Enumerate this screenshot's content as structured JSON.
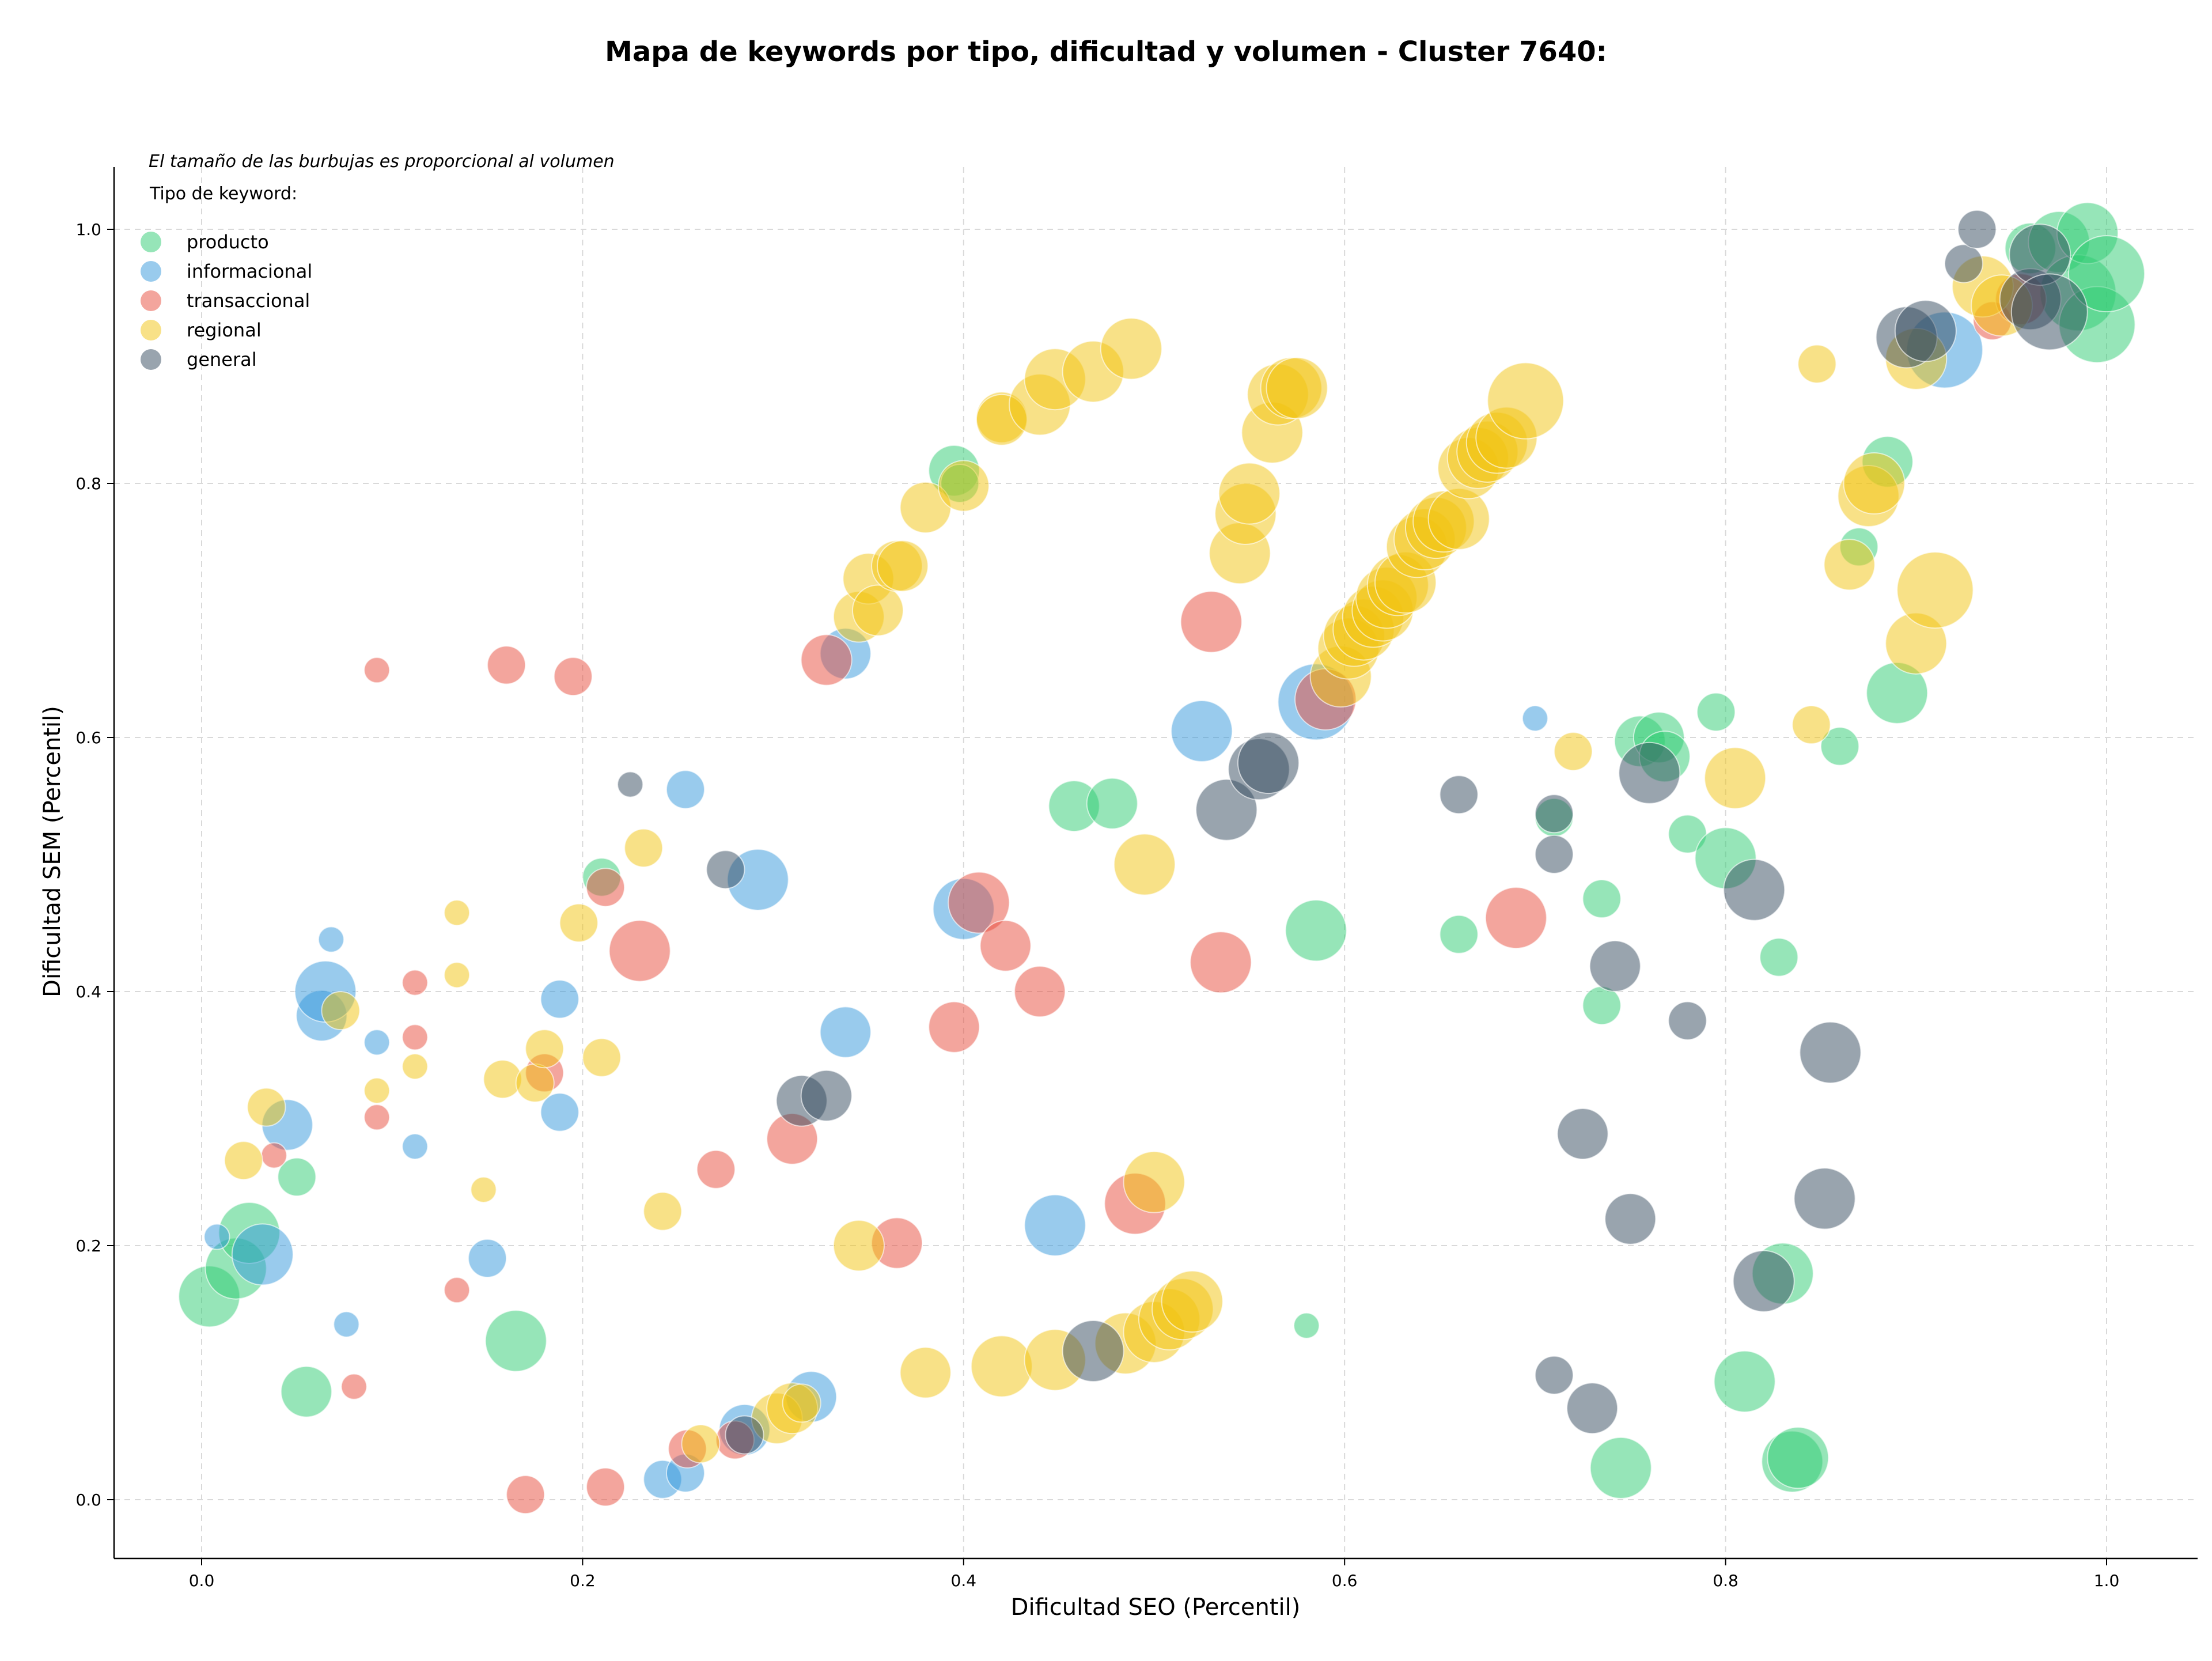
{
  "chart_data": {
    "type": "scatter",
    "title": "Mapa de keywords por tipo, dificultad y volumen - Cluster 7640:",
    "xlabel": "Dificultad SEO (Percentil)",
    "ylabel": "Dificultad SEM (Percentil)",
    "note": "El tamaño de las burbujas es proporcional al volumen",
    "legend_title": "Tipo de keyword:",
    "legend_position": "top-left",
    "grid": true,
    "xlim": [
      -0.045,
      1.05
    ],
    "ylim": [
      -0.045,
      1.05
    ],
    "xticks": [
      "0.0",
      "0.2",
      "0.4",
      "0.6",
      "0.8",
      "1.0"
    ],
    "yticks": [
      "0.0",
      "0.2",
      "0.4",
      "0.6",
      "0.8",
      "1.0"
    ],
    "series": [
      {
        "name": "producto",
        "color": "#2ecc71",
        "points": [
          [
            0.004,
            0.16,
            4
          ],
          [
            0.018,
            0.182,
            4
          ],
          [
            0.025,
            0.21,
            4
          ],
          [
            0.05,
            0.254,
            2
          ],
          [
            0.055,
            0.085,
            3
          ],
          [
            0.165,
            0.125,
            4
          ],
          [
            0.21,
            0.49,
            2
          ],
          [
            0.395,
            0.81,
            3
          ],
          [
            0.398,
            0.8,
            2
          ],
          [
            0.458,
            0.546,
            3
          ],
          [
            0.478,
            0.548,
            3
          ],
          [
            0.58,
            0.137,
            1
          ],
          [
            0.585,
            0.448,
            4
          ],
          [
            0.66,
            0.445,
            2
          ],
          [
            0.71,
            0.537,
            2
          ],
          [
            0.735,
            0.473,
            2
          ],
          [
            0.735,
            0.389,
            2
          ],
          [
            0.745,
            0.025,
            4
          ],
          [
            0.755,
            0.597,
            3
          ],
          [
            0.765,
            0.6,
            3
          ],
          [
            0.768,
            0.585,
            3
          ],
          [
            0.78,
            0.524,
            2
          ],
          [
            0.795,
            0.62,
            2
          ],
          [
            0.8,
            0.505,
            4
          ],
          [
            0.81,
            0.093,
            4
          ],
          [
            0.828,
            0.427,
            2
          ],
          [
            0.83,
            0.178,
            4
          ],
          [
            0.835,
            0.03,
            4
          ],
          [
            0.838,
            0.033,
            4
          ],
          [
            0.86,
            0.593,
            2
          ],
          [
            0.87,
            0.75,
            2
          ],
          [
            0.885,
            0.817,
            3
          ],
          [
            0.89,
            0.635,
            4
          ],
          [
            0.96,
            0.985,
            3
          ],
          [
            0.975,
            0.99,
            4
          ],
          [
            0.985,
            0.95,
            5
          ],
          [
            0.99,
            0.997,
            4
          ],
          [
            0.995,
            0.925,
            5
          ],
          [
            1.0,
            0.965,
            5
          ]
        ]
      },
      {
        "name": "informacional",
        "color": "#3498db",
        "points": [
          [
            0.008,
            0.207,
            1
          ],
          [
            0.032,
            0.193,
            4
          ],
          [
            0.045,
            0.295,
            3
          ],
          [
            0.063,
            0.381,
            3
          ],
          [
            0.065,
            0.4,
            4
          ],
          [
            0.068,
            0.441,
            1
          ],
          [
            0.076,
            0.138,
            1
          ],
          [
            0.092,
            0.36,
            1
          ],
          [
            0.112,
            0.278,
            1
          ],
          [
            0.15,
            0.19,
            2
          ],
          [
            0.188,
            0.394,
            2
          ],
          [
            0.188,
            0.305,
            2
          ],
          [
            0.242,
            0.016,
            2
          ],
          [
            0.254,
            0.021,
            2
          ],
          [
            0.254,
            0.559,
            2
          ],
          [
            0.285,
            0.055,
            3
          ],
          [
            0.292,
            0.488,
            4
          ],
          [
            0.32,
            0.081,
            3
          ],
          [
            0.338,
            0.368,
            3
          ],
          [
            0.338,
            0.666,
            3
          ],
          [
            0.4,
            0.465,
            4
          ],
          [
            0.448,
            0.216,
            4
          ],
          [
            0.525,
            0.605,
            4
          ],
          [
            0.585,
            0.628,
            5
          ],
          [
            0.7,
            0.615,
            1
          ],
          [
            0.915,
            0.905,
            5
          ]
        ]
      },
      {
        "name": "transaccional",
        "color": "#e74c3c",
        "points": [
          [
            0.038,
            0.271,
            1
          ],
          [
            0.08,
            0.089,
            1
          ],
          [
            0.092,
            0.301,
            1
          ],
          [
            0.092,
            0.653,
            1
          ],
          [
            0.112,
            0.407,
            1
          ],
          [
            0.112,
            0.364,
            1
          ],
          [
            0.134,
            0.165,
            1
          ],
          [
            0.16,
            0.657,
            2
          ],
          [
            0.17,
            0.004,
            2
          ],
          [
            0.18,
            0.336,
            2
          ],
          [
            0.195,
            0.648,
            2
          ],
          [
            0.212,
            0.01,
            2
          ],
          [
            0.212,
            0.482,
            2
          ],
          [
            0.23,
            0.432,
            4
          ],
          [
            0.255,
            0.04,
            2
          ],
          [
            0.27,
            0.26,
            2
          ],
          [
            0.28,
            0.047,
            2
          ],
          [
            0.31,
            0.284,
            3
          ],
          [
            0.328,
            0.661,
            3
          ],
          [
            0.365,
            0.202,
            3
          ],
          [
            0.395,
            0.372,
            3
          ],
          [
            0.408,
            0.47,
            4
          ],
          [
            0.422,
            0.436,
            3
          ],
          [
            0.44,
            0.4,
            3
          ],
          [
            0.49,
            0.233,
            4
          ],
          [
            0.53,
            0.691,
            4
          ],
          [
            0.535,
            0.423,
            4
          ],
          [
            0.59,
            0.63,
            4
          ],
          [
            0.69,
            0.458,
            4
          ],
          [
            0.94,
            0.928,
            2
          ],
          [
            0.955,
            0.945,
            3
          ]
        ]
      },
      {
        "name": "regional",
        "color": "#f1c40f",
        "points": [
          [
            0.022,
            0.267,
            2
          ],
          [
            0.034,
            0.309,
            2
          ],
          [
            0.073,
            0.385,
            2
          ],
          [
            0.092,
            0.322,
            1
          ],
          [
            0.112,
            0.341,
            1
          ],
          [
            0.134,
            0.462,
            1
          ],
          [
            0.134,
            0.413,
            1
          ],
          [
            0.148,
            0.244,
            1
          ],
          [
            0.158,
            0.331,
            2
          ],
          [
            0.175,
            0.328,
            2
          ],
          [
            0.18,
            0.355,
            2
          ],
          [
            0.198,
            0.454,
            2
          ],
          [
            0.21,
            0.348,
            2
          ],
          [
            0.232,
            0.513,
            2
          ],
          [
            0.242,
            0.227,
            2
          ],
          [
            0.262,
            0.044,
            2
          ],
          [
            0.302,
            0.064,
            3
          ],
          [
            0.31,
            0.072,
            3
          ],
          [
            0.315,
            0.076,
            2
          ],
          [
            0.345,
            0.2,
            3
          ],
          [
            0.345,
            0.695,
            3
          ],
          [
            0.35,
            0.725,
            3
          ],
          [
            0.355,
            0.7,
            3
          ],
          [
            0.365,
            0.735,
            3
          ],
          [
            0.368,
            0.735,
            3
          ],
          [
            0.38,
            0.1,
            3
          ],
          [
            0.38,
            0.781,
            3
          ],
          [
            0.4,
            0.798,
            3
          ],
          [
            0.42,
            0.105,
            4
          ],
          [
            0.42,
            0.852,
            3
          ],
          [
            0.42,
            0.85,
            3
          ],
          [
            0.44,
            0.862,
            4
          ],
          [
            0.448,
            0.11,
            4
          ],
          [
            0.448,
            0.882,
            4
          ],
          [
            0.468,
            0.888,
            4
          ],
          [
            0.485,
            0.123,
            4
          ],
          [
            0.488,
            0.906,
            4
          ],
          [
            0.495,
            0.5,
            4
          ],
          [
            0.5,
            0.132,
            4
          ],
          [
            0.5,
            0.25,
            4
          ],
          [
            0.508,
            0.142,
            4
          ],
          [
            0.515,
            0.15,
            4
          ],
          [
            0.52,
            0.156,
            4
          ],
          [
            0.545,
            0.745,
            4
          ],
          [
            0.548,
            0.776,
            4
          ],
          [
            0.55,
            0.792,
            4
          ],
          [
            0.562,
            0.84,
            4
          ],
          [
            0.565,
            0.87,
            4
          ],
          [
            0.572,
            0.875,
            4
          ],
          [
            0.575,
            0.875,
            4
          ],
          [
            0.598,
            0.648,
            4
          ],
          [
            0.602,
            0.67,
            4
          ],
          [
            0.605,
            0.68,
            4
          ],
          [
            0.61,
            0.685,
            4
          ],
          [
            0.615,
            0.695,
            4
          ],
          [
            0.62,
            0.7,
            4
          ],
          [
            0.622,
            0.71,
            4
          ],
          [
            0.628,
            0.72,
            4
          ],
          [
            0.632,
            0.722,
            4
          ],
          [
            0.638,
            0.75,
            4
          ],
          [
            0.642,
            0.756,
            4
          ],
          [
            0.648,
            0.765,
            4
          ],
          [
            0.652,
            0.77,
            4
          ],
          [
            0.66,
            0.772,
            4
          ],
          [
            0.665,
            0.812,
            4
          ],
          [
            0.67,
            0.82,
            4
          ],
          [
            0.675,
            0.825,
            4
          ],
          [
            0.68,
            0.832,
            4
          ],
          [
            0.685,
            0.836,
            4
          ],
          [
            0.695,
            0.865,
            5
          ],
          [
            0.72,
            0.589,
            2
          ],
          [
            0.805,
            0.568,
            4
          ],
          [
            0.845,
            0.61,
            2
          ],
          [
            0.848,
            0.894,
            2
          ],
          [
            0.865,
            0.736,
            3
          ],
          [
            0.875,
            0.79,
            4
          ],
          [
            0.878,
            0.8,
            4
          ],
          [
            0.9,
            0.898,
            4
          ],
          [
            0.9,
            0.674,
            4
          ],
          [
            0.91,
            0.716,
            5
          ],
          [
            0.935,
            0.955,
            4
          ],
          [
            0.945,
            0.94,
            4
          ]
        ]
      },
      {
        "name": "general",
        "color": "#34495e",
        "points": [
          [
            0.225,
            0.563,
            1
          ],
          [
            0.275,
            0.496,
            2
          ],
          [
            0.285,
            0.051,
            2
          ],
          [
            0.315,
            0.314,
            3
          ],
          [
            0.328,
            0.318,
            3
          ],
          [
            0.468,
            0.117,
            4
          ],
          [
            0.538,
            0.543,
            4
          ],
          [
            0.555,
            0.575,
            4
          ],
          [
            0.56,
            0.58,
            4
          ],
          [
            0.66,
            0.555,
            2
          ],
          [
            0.71,
            0.098,
            2
          ],
          [
            0.71,
            0.54,
            2
          ],
          [
            0.71,
            0.508,
            2
          ],
          [
            0.725,
            0.288,
            3
          ],
          [
            0.73,
            0.072,
            3
          ],
          [
            0.742,
            0.42,
            3
          ],
          [
            0.75,
            0.221,
            3
          ],
          [
            0.76,
            0.572,
            4
          ],
          [
            0.78,
            0.377,
            2
          ],
          [
            0.815,
            0.48,
            4
          ],
          [
            0.82,
            0.172,
            4
          ],
          [
            0.852,
            0.237,
            4
          ],
          [
            0.855,
            0.352,
            4
          ],
          [
            0.895,
            0.915,
            4
          ],
          [
            0.905,
            0.92,
            4
          ],
          [
            0.925,
            0.973,
            2
          ],
          [
            0.932,
            1.0,
            2
          ],
          [
            0.96,
            0.945,
            4
          ],
          [
            0.965,
            0.98,
            4
          ],
          [
            0.97,
            0.935,
            5
          ]
        ]
      }
    ]
  }
}
